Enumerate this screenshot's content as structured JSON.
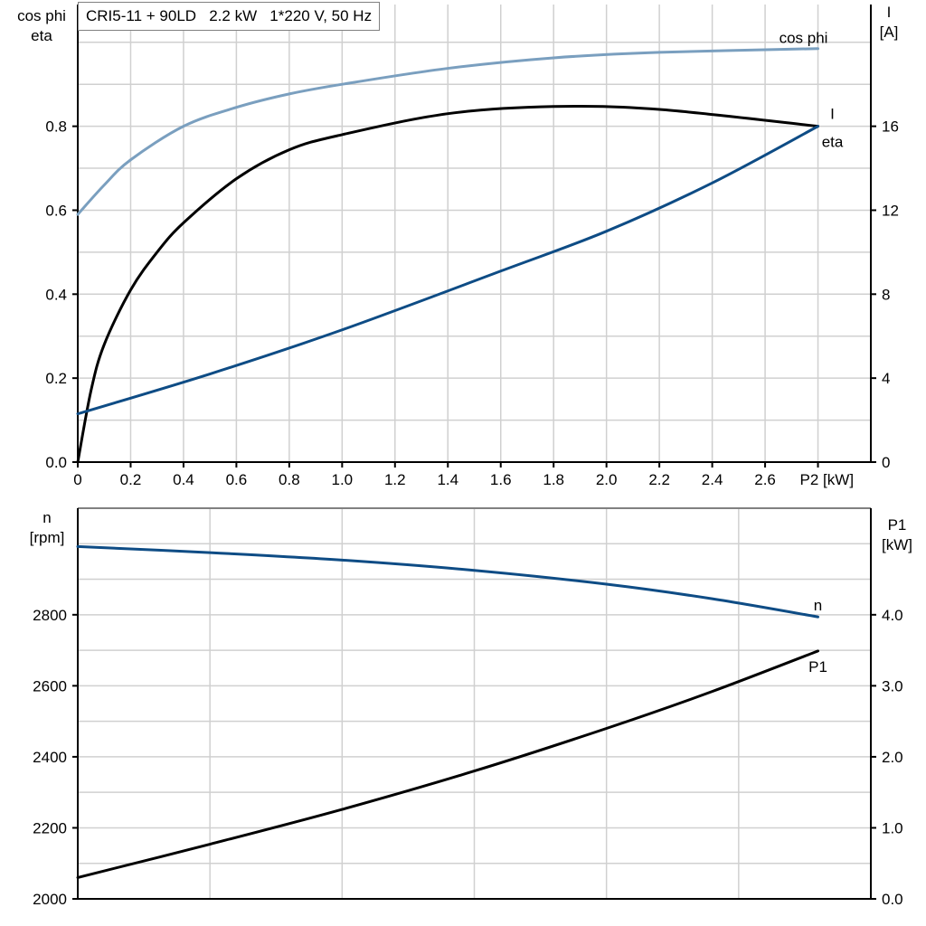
{
  "title": "CRI5-11 + 90LD   2.2 kW   1*220 V, 50 Hz",
  "colors": {
    "cos_phi": "#7a9fbf",
    "eta": "#000000",
    "I": "#0e4c85",
    "n": "#0e4c85",
    "P1": "#000000",
    "grid": "#d0d0d0"
  },
  "chart_data": [
    {
      "type": "line",
      "xlabel": "P2 [kW]",
      "ylabel_left": [
        "cos phi",
        "eta"
      ],
      "ylabel_right": [
        "I",
        "[A]"
      ],
      "xlim": [
        0,
        3.0
      ],
      "ylim_left": [
        0,
        1.09
      ],
      "ylim_right": [
        0,
        21.8
      ],
      "x_ticks": [
        "0",
        "0.2",
        "0.4",
        "0.6",
        "0.8",
        "1.0",
        "1.2",
        "1.4",
        "1.6",
        "1.8",
        "2.0",
        "2.2",
        "2.4",
        "2.6"
      ],
      "y_ticks_left": [
        "0.0",
        "0.2",
        "0.4",
        "0.6",
        "0.8"
      ],
      "y_ticks_right": [
        "0",
        "4",
        "8",
        "12",
        "16"
      ],
      "grid": true,
      "series": [
        {
          "name": "cos phi",
          "axis": "left",
          "x": [
            0,
            0.1,
            0.2,
            0.4,
            0.6,
            0.8,
            1.0,
            1.4,
            1.8,
            2.2,
            2.8
          ],
          "y": [
            0.59,
            0.66,
            0.72,
            0.8,
            0.845,
            0.877,
            0.9,
            0.938,
            0.963,
            0.976,
            0.985
          ]
        },
        {
          "name": "eta",
          "axis": "left",
          "x": [
            0,
            0.05,
            0.1,
            0.2,
            0.3,
            0.4,
            0.6,
            0.8,
            1.0,
            1.4,
            1.8,
            2.2,
            2.8
          ],
          "y": [
            0,
            0.17,
            0.28,
            0.41,
            0.5,
            0.57,
            0.675,
            0.744,
            0.78,
            0.83,
            0.847,
            0.84,
            0.8
          ]
        },
        {
          "name": "I",
          "axis": "right",
          "x": [
            0,
            0.5,
            1.0,
            1.6,
            2.0,
            2.4,
            2.8
          ],
          "y": [
            2.3,
            4.2,
            6.3,
            9.1,
            11.0,
            13.3,
            16.0
          ]
        }
      ]
    },
    {
      "type": "line",
      "ylabel_left": [
        "n",
        "[rpm]"
      ],
      "ylabel_right": [
        "P1",
        "[kW]"
      ],
      "xlim": [
        0,
        3.0
      ],
      "ylim_left": [
        2000,
        3100
      ],
      "ylim_right": [
        0,
        5.5
      ],
      "y_ticks_left": [
        "2000",
        "2200",
        "2400",
        "2600",
        "2800"
      ],
      "y_ticks_right": [
        "0.0",
        "1.0",
        "2.0",
        "3.0",
        "4.0"
      ],
      "grid": true,
      "series": [
        {
          "name": "n",
          "axis": "left",
          "x": [
            0,
            0.5,
            1.0,
            1.5,
            2.0,
            2.4,
            2.8
          ],
          "y": [
            2992,
            2975,
            2954,
            2925,
            2886,
            2845,
            2794
          ]
        },
        {
          "name": "P1",
          "axis": "right",
          "x": [
            0,
            0.5,
            1.0,
            1.5,
            2.0,
            2.4,
            2.8
          ],
          "y": [
            0.3,
            0.77,
            1.26,
            1.8,
            2.4,
            2.92,
            3.49
          ]
        }
      ]
    }
  ]
}
